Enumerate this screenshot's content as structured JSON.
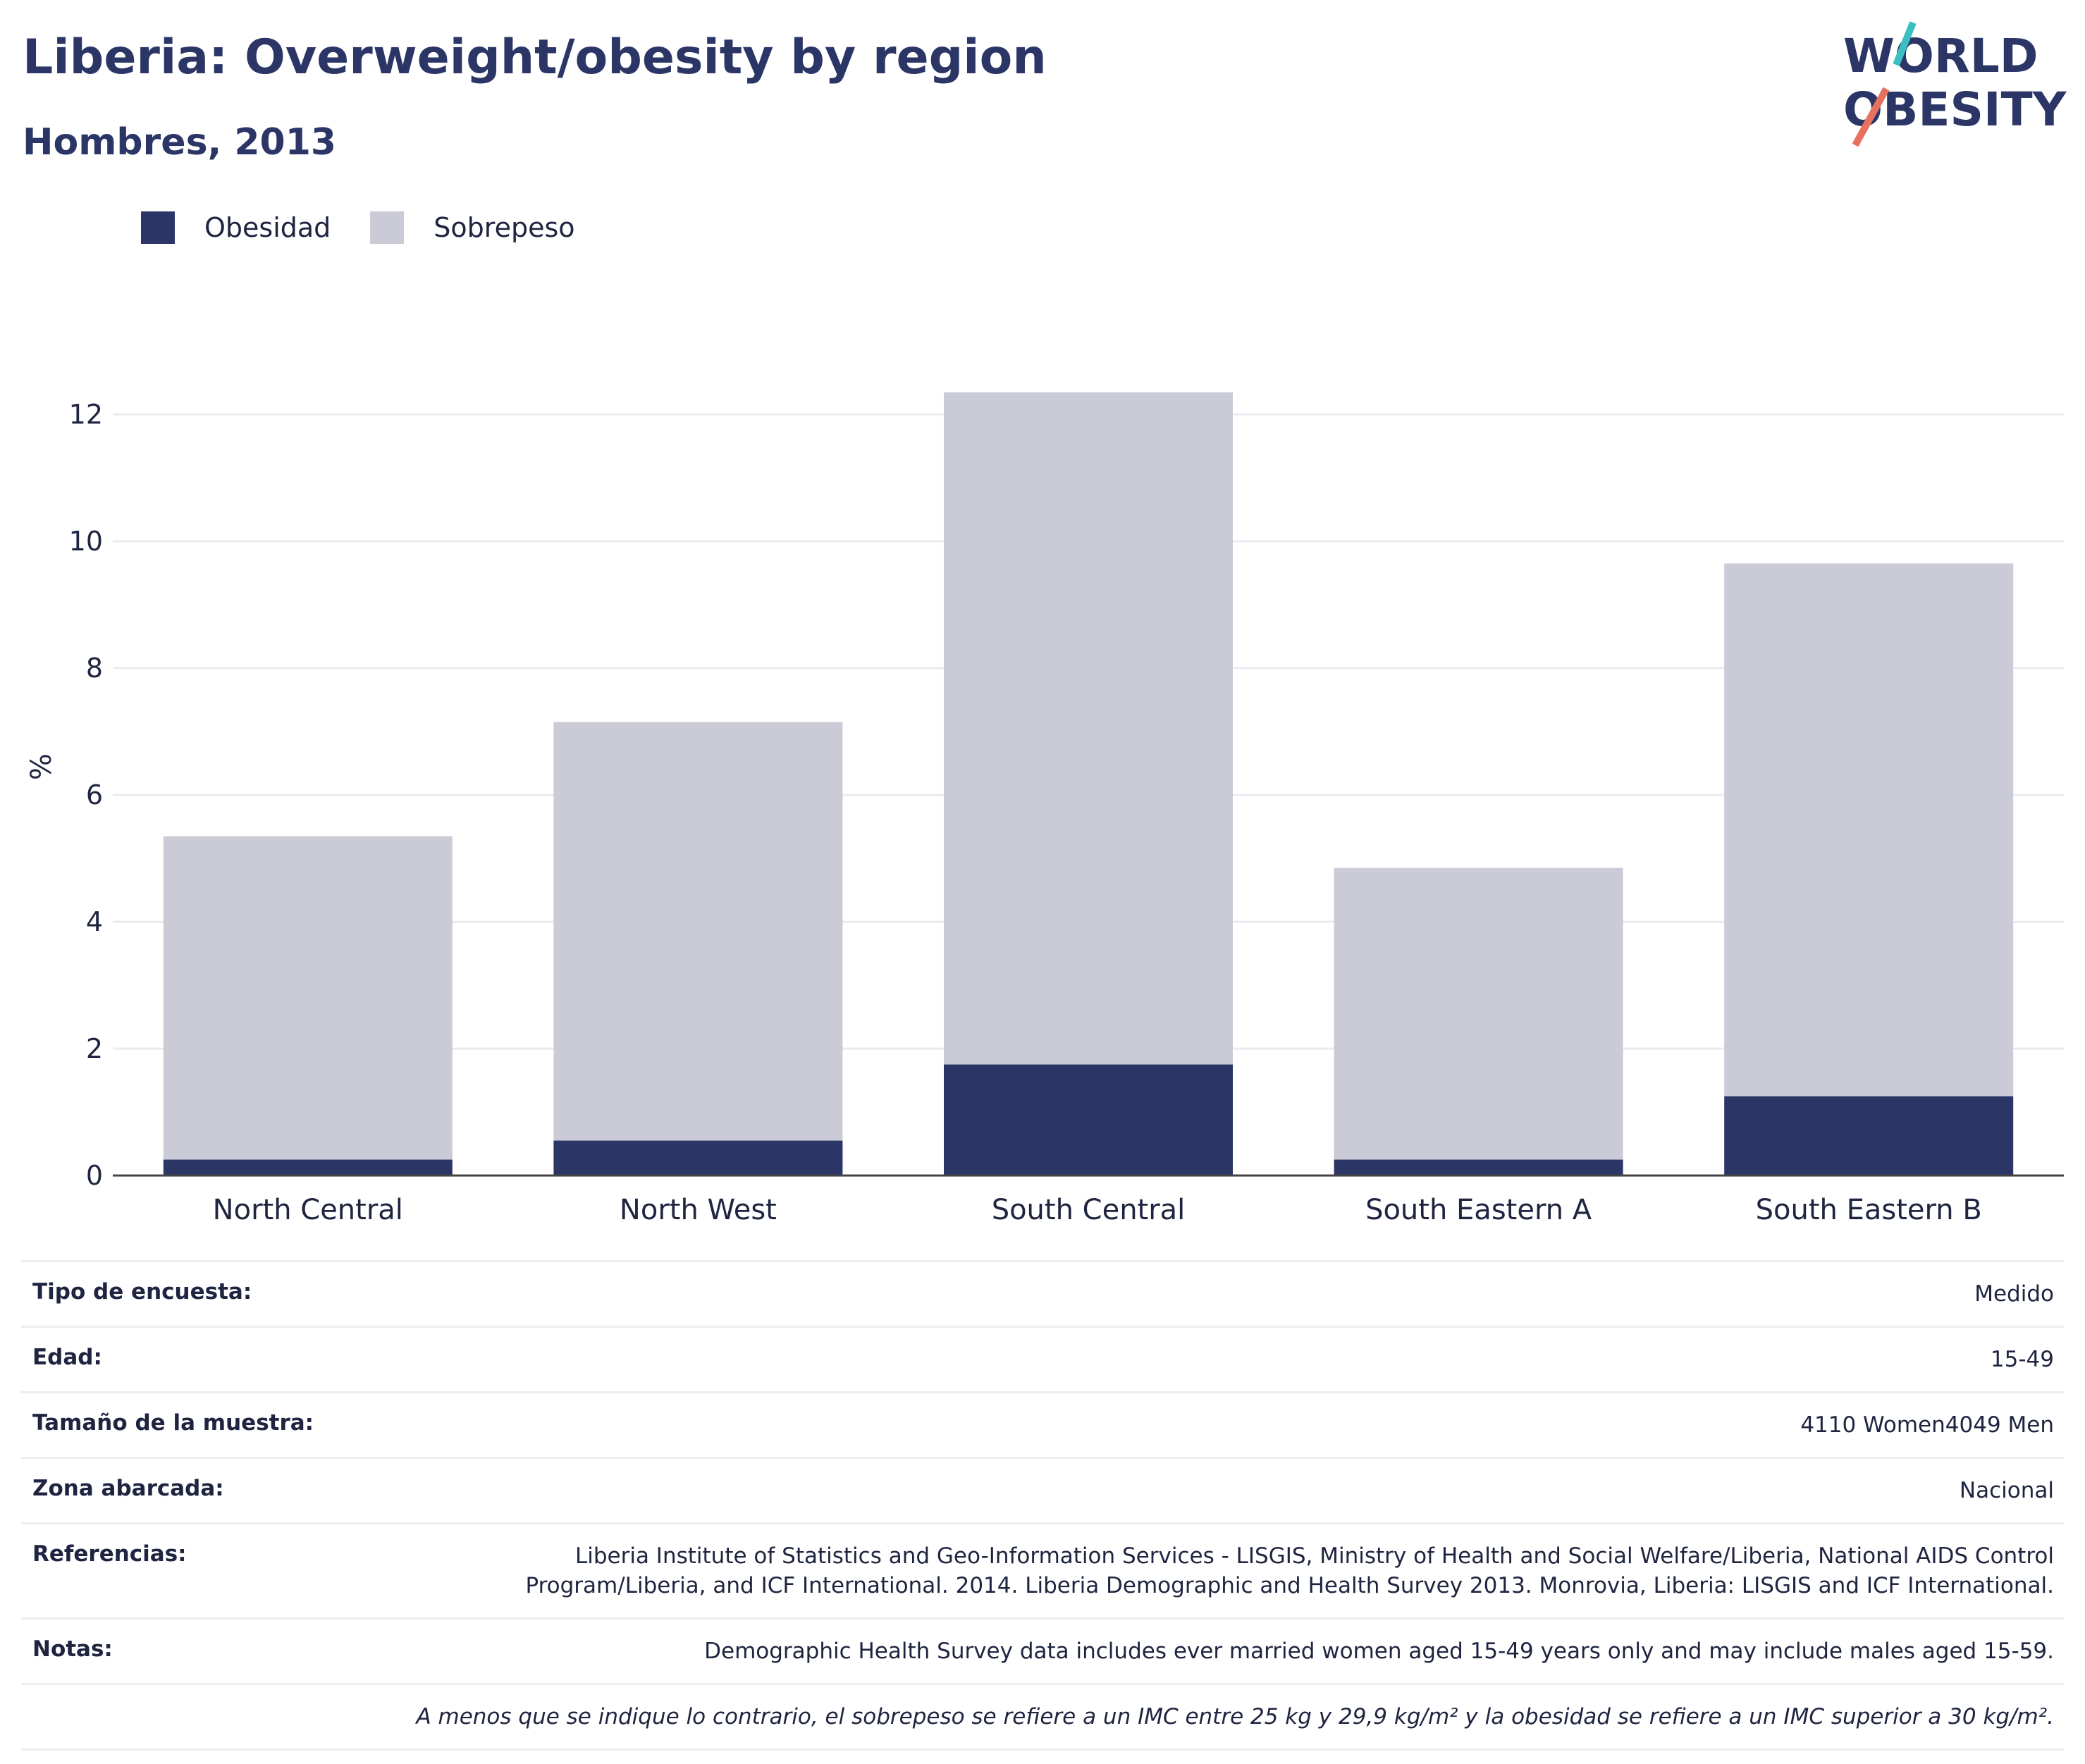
{
  "header": {
    "title": "Liberia: Overweight/obesity by region",
    "subtitle": "Hombres, 2013"
  },
  "logo": {
    "line1": "WORLD",
    "line2": "OBESITY"
  },
  "colors": {
    "obesity": "#2b3566",
    "overweight": "#cacbd7",
    "title": "#2b3566",
    "logo_teal": "#3bbfc1",
    "logo_coral": "#e8705f"
  },
  "chart_data": {
    "type": "bar",
    "stacked": true,
    "categories": [
      "North Central",
      "North West",
      "South Central",
      "South Eastern A",
      "South Eastern B"
    ],
    "series": [
      {
        "name": "Obesidad",
        "values": [
          0.25,
          0.55,
          1.75,
          0.25,
          1.25
        ]
      },
      {
        "name": "Sobrepeso",
        "values": [
          5.1,
          6.6,
          10.6,
          4.6,
          8.4
        ]
      }
    ],
    "totals": [
      5.35,
      7.15,
      12.35,
      4.85,
      9.65
    ],
    "ylabel": "%",
    "xlabel": "",
    "ylim": [
      0,
      13
    ],
    "yticks": [
      0,
      2,
      4,
      6,
      8,
      10,
      12
    ],
    "grid": true,
    "legend_position": "top-left"
  },
  "info": {
    "rows": [
      {
        "label": "Tipo de encuesta:",
        "value": "Medido"
      },
      {
        "label": "Edad:",
        "value": "15-49"
      },
      {
        "label": "Tamaño de la muestra:",
        "value": "4110 Women4049 Men"
      },
      {
        "label": "Zona abarcada:",
        "value": "Nacional"
      },
      {
        "label": "Referencias:",
        "value": "Liberia Institute of Statistics and Geo-Information Services - LISGIS, Ministry of Health and Social Welfare/Liberia, National AIDS Control Program/Liberia, and ICF International. 2014. Liberia Demographic and Health Survey 2013. Monrovia, Liberia: LISGIS and ICF International."
      },
      {
        "label": "Notas:",
        "value": "Demographic Health Survey data includes ever married women aged 15-49 years only and may include males aged 15-59."
      }
    ],
    "footnote": "A menos que se indique lo contrario, el sobrepeso se refiere a un IMC entre 25 kg y 29,9 kg/m² y la obesidad se refiere a un IMC superior a 30 kg/m²."
  }
}
